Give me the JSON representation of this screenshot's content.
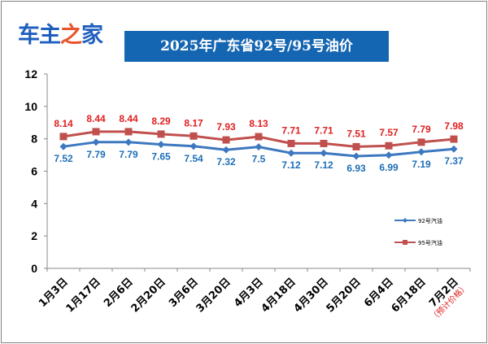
{
  "logo": {
    "parts": [
      {
        "text": "车主",
        "color": "#1f5fbf"
      },
      {
        "text": "之",
        "color": "#e8542b"
      },
      {
        "text": "家",
        "color": "#1f5fbf"
      }
    ]
  },
  "chart_data": {
    "type": "line",
    "title": "2025年广东省92号/95号油价",
    "xlabel": "",
    "ylabel": "",
    "ylim": [
      0,
      12
    ],
    "yticks": [
      0,
      2,
      4,
      6,
      8,
      10,
      12
    ],
    "grid": false,
    "legend_position": "right",
    "categories": [
      "1月3日",
      "1月17日",
      "2月6日",
      "2月20日",
      "3月6日",
      "3月20日",
      "4月3日",
      "4月18日",
      "4月30日",
      "5月20日",
      "6月4日",
      "6月18日",
      "7月2日"
    ],
    "category_note": {
      "index": 12,
      "text": "（预计价格）"
    },
    "series": [
      {
        "name": "92号汽油",
        "color": "#3d78c0",
        "label_color": "#1f6fb8",
        "marker": "diamond",
        "values": [
          7.52,
          7.79,
          7.79,
          7.65,
          7.54,
          7.32,
          7.5,
          7.12,
          7.12,
          6.93,
          6.99,
          7.19,
          7.37
        ]
      },
      {
        "name": "95号汽油",
        "color": "#c0504d",
        "label_color": "#e02020",
        "marker": "square",
        "values": [
          8.14,
          8.44,
          8.44,
          8.29,
          8.17,
          7.93,
          8.13,
          7.71,
          7.71,
          7.51,
          7.57,
          7.79,
          7.98
        ]
      }
    ]
  }
}
